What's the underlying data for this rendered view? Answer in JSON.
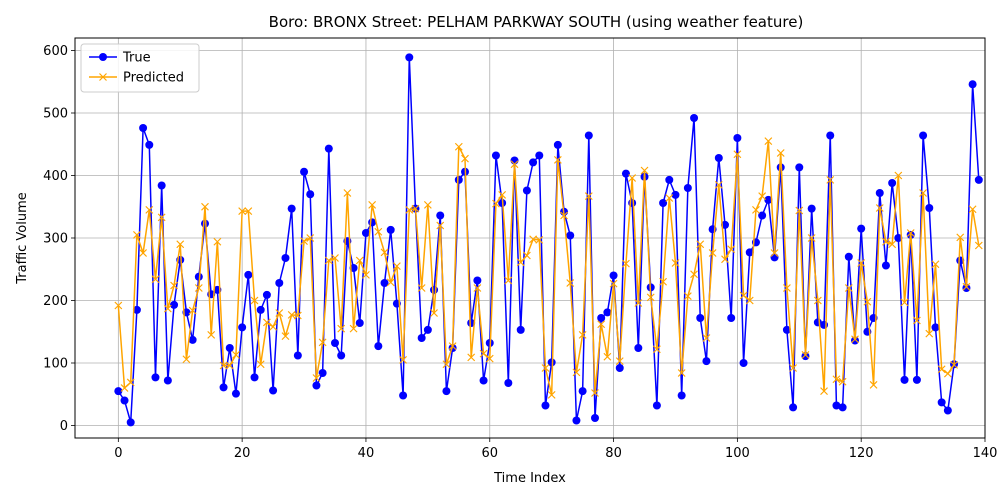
{
  "chart_data": {
    "type": "line",
    "title": "Boro: BRONX Street: PELHAM PARKWAY SOUTH (using weather feature)",
    "xlabel": "Time Index",
    "ylabel": "Traffic Volume",
    "xlim": [
      -7,
      140
    ],
    "ylim": [
      -20,
      620
    ],
    "xticks": [
      0,
      20,
      40,
      60,
      80,
      100,
      120,
      140
    ],
    "yticks": [
      0,
      100,
      200,
      300,
      400,
      500,
      600
    ],
    "grid": true,
    "legend": "upper-left",
    "series": [
      {
        "name": "True",
        "color": "#0000ff",
        "marker": "circle",
        "values": [
          55,
          40,
          5,
          185,
          476,
          449,
          77,
          384,
          72,
          193,
          265,
          181,
          137,
          238,
          323,
          210,
          217,
          61,
          124,
          51,
          157,
          241,
          77,
          185,
          209,
          56,
          228,
          268,
          347,
          112,
          406,
          370,
          64,
          84,
          443,
          132,
          112,
          295,
          252,
          164,
          308,
          325,
          127,
          228,
          313,
          195,
          48,
          589,
          347,
          140,
          153,
          217,
          336,
          55,
          124,
          393,
          406,
          164,
          232,
          72,
          132,
          432,
          356,
          68,
          424,
          153,
          376,
          421,
          432,
          32,
          101,
          449,
          342,
          304,
          8,
          55,
          464,
          12,
          172,
          181,
          240,
          92,
          403,
          356,
          124,
          398,
          221,
          32,
          356,
          393,
          369,
          48,
          380,
          492,
          172,
          103,
          314,
          428,
          321,
          172,
          460,
          100,
          277,
          293,
          336,
          361,
          269,
          413,
          153,
          29,
          413,
          111,
          347,
          165,
          161,
          464,
          32,
          29,
          270,
          136,
          315,
          150,
          172,
          372,
          256,
          388,
          300,
          73,
          305,
          73,
          464,
          348,
          157,
          37,
          24,
          98,
          264,
          220,
          546,
          393
        ]
      },
      {
        "name": "Predicted",
        "color": "#ffa500",
        "marker": "x",
        "values": [
          192,
          60,
          69,
          305,
          276,
          345,
          234,
          333,
          187,
          224,
          290,
          106,
          184,
          220,
          350,
          145,
          294,
          96,
          96,
          113,
          343,
          343,
          200,
          98,
          165,
          158,
          180,
          143,
          177,
          176,
          295,
          300,
          76,
          133,
          264,
          268,
          155,
          372,
          155,
          264,
          241,
          353,
          310,
          277,
          229,
          255,
          105,
          345,
          347,
          220,
          353,
          180,
          320,
          98,
          127,
          446,
          427,
          109,
          220,
          115,
          107,
          355,
          369,
          232,
          418,
          261,
          272,
          298,
          297,
          92,
          49,
          425,
          336,
          228,
          85,
          145,
          367,
          52,
          162,
          110,
          227,
          103,
          259,
          396,
          196,
          408,
          205,
          122,
          230,
          364,
          260,
          84,
          207,
          242,
          290,
          140,
          276,
          385,
          266,
          282,
          434,
          208,
          200,
          345,
          367,
          455,
          276,
          436,
          220,
          92,
          344,
          113,
          300,
          200,
          55,
          393,
          74,
          70,
          220,
          138,
          260,
          198,
          65,
          348,
          294,
          290,
          400,
          197,
          308,
          168,
          372,
          147,
          258,
          90,
          83,
          97,
          301,
          222,
          346,
          288
        ]
      }
    ]
  }
}
